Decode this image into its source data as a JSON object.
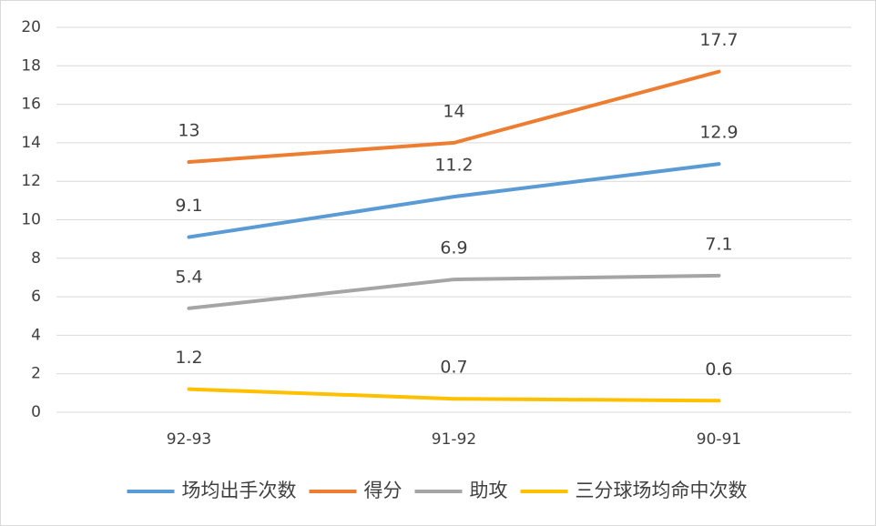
{
  "chart_data": {
    "type": "line",
    "categories": [
      "92-93",
      "91-92",
      "90-91"
    ],
    "series": [
      {
        "name": "场均出手次数",
        "color": "#5b9bd5",
        "values": [
          9.1,
          11.2,
          12.9
        ]
      },
      {
        "name": "得分",
        "color": "#ed7d31",
        "values": [
          13,
          14,
          17.7
        ]
      },
      {
        "name": "助攻",
        "color": "#a5a5a5",
        "values": [
          5.4,
          6.9,
          7.1
        ]
      },
      {
        "name": "三分球场均命中次数",
        "color": "#ffc000",
        "values": [
          1.2,
          0.7,
          0.6
        ]
      }
    ],
    "ylim": [
      0,
      20
    ],
    "yticks": [
      0,
      2,
      4,
      6,
      8,
      10,
      12,
      14,
      16,
      18,
      20
    ],
    "grid": true,
    "data_labels": true,
    "legend": "bottom"
  }
}
